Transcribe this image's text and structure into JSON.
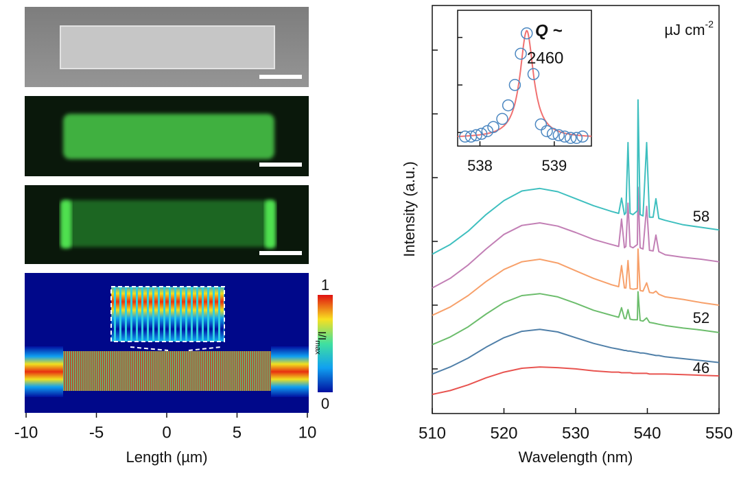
{
  "chart_data": [
    {
      "type": "heatmap",
      "xlabel": "Length (µm)",
      "xlim": [
        -10.1,
        10.1
      ],
      "xticks": [
        -10,
        -5,
        0,
        5,
        10
      ],
      "colorbar": {
        "label": "I/I",
        "label_sub": "max",
        "ticks": [
          1,
          0
        ]
      }
    },
    {
      "type": "line",
      "xlabel": "Wavelength (nm)",
      "ylabel": "Intensity (a.u.)",
      "annotation": "µJ cm",
      "annotation_sup": "-2",
      "xlim": [
        510,
        550
      ],
      "xticks": [
        510,
        520,
        530,
        540,
        550
      ],
      "ylim": [
        0.3,
        6.7
      ],
      "yticks": [
        1,
        2,
        3,
        4,
        5,
        6
      ],
      "x": [
        510,
        512.5,
        515,
        517.5,
        520,
        522.5,
        525,
        527.5,
        530,
        532.5,
        535,
        536,
        536.4,
        536.8,
        537,
        537.3,
        537.6,
        538,
        538.6,
        538.7,
        539,
        539.4,
        539.9,
        540.3,
        540.8,
        541.2,
        541.6,
        542.5,
        545,
        547.5,
        550
      ],
      "series": [
        {
          "name": "46",
          "color": "#e8534f",
          "values": [
            0.6,
            0.66,
            0.75,
            0.86,
            0.95,
            1.01,
            1.03,
            1.02,
            1.0,
            0.97,
            0.95,
            0.95,
            0.94,
            0.94,
            0.94,
            0.94,
            0.94,
            0.93,
            0.93,
            0.93,
            0.93,
            0.93,
            0.93,
            0.92,
            0.92,
            0.92,
            0.92,
            0.92,
            0.91,
            0.9,
            0.89
          ]
        },
        {
          "color": "#4f7fa8",
          "values": [
            0.92,
            1.03,
            1.17,
            1.34,
            1.49,
            1.59,
            1.62,
            1.58,
            1.49,
            1.4,
            1.33,
            1.31,
            1.3,
            1.29,
            1.29,
            1.28,
            1.28,
            1.27,
            1.26,
            1.26,
            1.25,
            1.25,
            1.24,
            1.23,
            1.22,
            1.21,
            1.21,
            1.19,
            1.16,
            1.13,
            1.1
          ]
        },
        {
          "name": "52",
          "color": "#6cbd6c",
          "values": [
            1.38,
            1.5,
            1.66,
            1.86,
            2.04,
            2.15,
            2.18,
            2.13,
            2.03,
            1.92,
            1.84,
            1.81,
            1.96,
            1.79,
            1.79,
            1.93,
            1.78,
            1.77,
            1.77,
            2.21,
            1.76,
            1.75,
            1.8,
            1.73,
            1.72,
            1.71,
            1.7,
            1.68,
            1.64,
            1.61,
            1.57
          ]
        },
        {
          "color": "#f7a06a",
          "values": [
            1.84,
            1.97,
            2.15,
            2.37,
            2.56,
            2.68,
            2.72,
            2.66,
            2.54,
            2.42,
            2.32,
            2.29,
            2.62,
            2.27,
            2.27,
            2.7,
            2.26,
            2.25,
            2.26,
            2.88,
            2.23,
            2.22,
            2.35,
            2.2,
            2.19,
            2.22,
            2.17,
            2.13,
            2.09,
            2.04,
            2.0
          ]
        },
        {
          "color": "#c27fb5",
          "values": [
            2.27,
            2.42,
            2.63,
            2.88,
            3.11,
            3.25,
            3.29,
            3.24,
            3.14,
            3.03,
            2.95,
            2.92,
            3.35,
            2.9,
            2.92,
            3.6,
            2.92,
            2.9,
            2.95,
            3.85,
            2.9,
            2.88,
            3.55,
            2.86,
            2.85,
            3.1,
            2.84,
            2.79,
            2.75,
            2.72,
            2.68
          ]
        },
        {
          "name": "58",
          "color": "#3ebfbf",
          "values": [
            2.8,
            2.95,
            3.16,
            3.42,
            3.64,
            3.79,
            3.83,
            3.78,
            3.67,
            3.56,
            3.47,
            3.44,
            3.68,
            3.42,
            3.45,
            4.55,
            3.44,
            3.42,
            3.48,
            5.22,
            3.42,
            3.4,
            4.55,
            3.38,
            3.38,
            3.67,
            3.36,
            3.33,
            3.26,
            3.22,
            3.18
          ]
        }
      ]
    },
    {
      "type": "scatter",
      "annotation_lines": [
        "Q ~",
        "2460"
      ],
      "xlim": [
        537.7,
        539.5
      ],
      "xticks": [
        538,
        539
      ],
      "ylim": [
        0,
        1
      ],
      "yticks": [
        0.1,
        0.45,
        0.8
      ],
      "x": [
        537.8,
        537.88,
        537.95,
        538.02,
        538.1,
        538.18,
        538.3,
        538.38,
        538.47,
        538.55,
        538.63,
        538.72,
        538.82,
        538.9,
        538.98,
        539.06,
        539.14,
        539.22,
        539.3,
        539.38
      ],
      "values": [
        0.07,
        0.07,
        0.08,
        0.09,
        0.11,
        0.14,
        0.2,
        0.3,
        0.45,
        0.68,
        0.83,
        0.53,
        0.16,
        0.11,
        0.09,
        0.08,
        0.07,
        0.06,
        0.06,
        0.07
      ],
      "color": "#4a86c0",
      "fit": {
        "center": 538.63,
        "fwhm": 0.219,
        "amplitude": 0.79,
        "offset": 0.06,
        "color": "#f07070"
      }
    }
  ]
}
